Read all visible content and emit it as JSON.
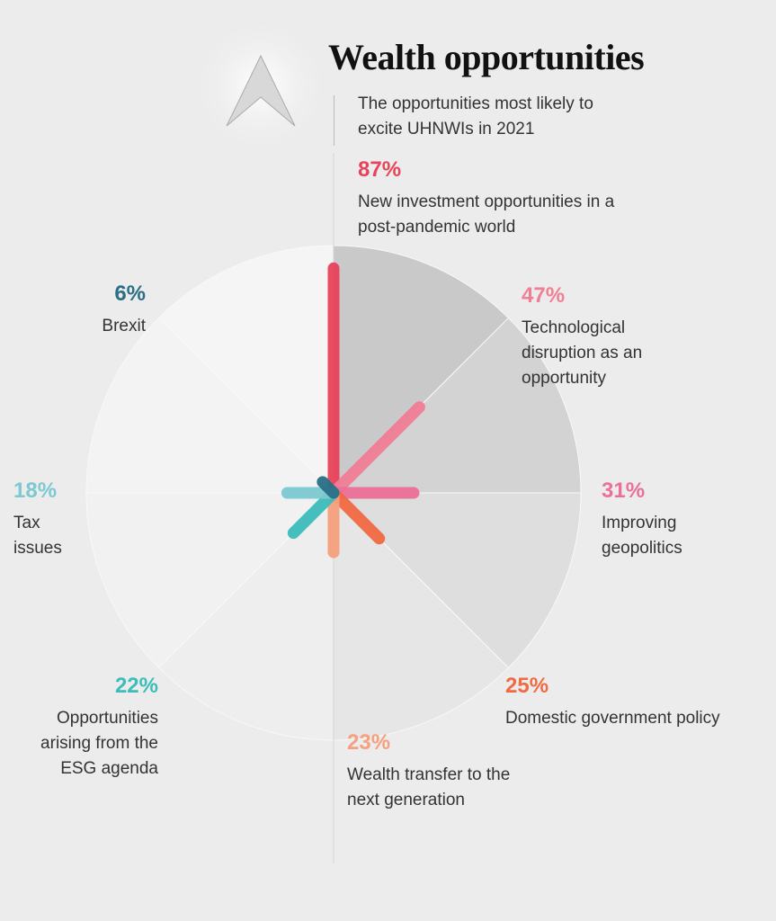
{
  "chart_data": {
    "type": "radial-bar",
    "title": "Wealth opportunities",
    "subtitle": "The opportunities most likely to excite UHNWIs in 2021",
    "categories": [
      "New investment opportunities in a post-pandemic world",
      "Technological disruption as an opportunity",
      "Improving geopolitics",
      "Domestic government policy",
      "Wealth transfer to the next generation",
      "Opportunities arising from the ESG agenda",
      "Tax issues",
      "Brexit"
    ],
    "values": [
      87,
      47,
      31,
      25,
      23,
      22,
      18,
      6
    ],
    "value_labels": [
      "87%",
      "47%",
      "31%",
      "25%",
      "23%",
      "22%",
      "18%",
      "6%"
    ],
    "colors": [
      "#e8435a",
      "#f07e95",
      "#ec6f98",
      "#f06a42",
      "#f5a07e",
      "#3bbdbb",
      "#7cc9d2",
      "#2a6f86"
    ]
  }
}
